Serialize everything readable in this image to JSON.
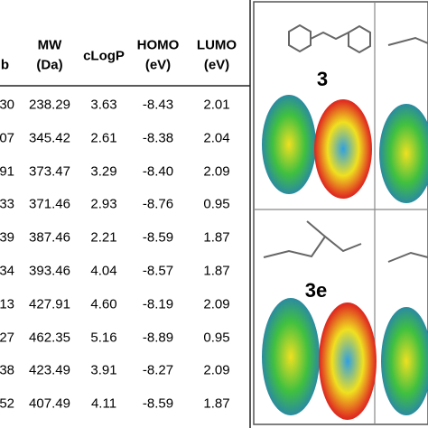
{
  "table": {
    "first_col_header_fragment": "b",
    "columns": [
      {
        "line1": "MW",
        "line2": "(Da)"
      },
      {
        "line1": "cLogP"
      },
      {
        "line1": "HOMO",
        "line2": "(eV)"
      },
      {
        "line1": "LUMO",
        "line2": "(eV)"
      }
    ],
    "rows": [
      [
        "30",
        "238.29",
        "3.63",
        "-8.43",
        "2.01"
      ],
      [
        "07",
        "345.42",
        "2.61",
        "-8.38",
        "2.04"
      ],
      [
        "91",
        "373.47",
        "3.29",
        "-8.40",
        "2.09"
      ],
      [
        "33",
        "371.46",
        "2.93",
        "-8.76",
        "0.95"
      ],
      [
        "39",
        "387.46",
        "2.21",
        "-8.59",
        "1.87"
      ],
      [
        "34",
        "393.46",
        "4.04",
        "-8.57",
        "1.87"
      ],
      [
        "13",
        "427.91",
        "4.60",
        "-8.19",
        "2.09"
      ],
      [
        "27",
        "462.35",
        "5.16",
        "-8.89",
        "0.95"
      ],
      [
        "38",
        "423.49",
        "3.91",
        "-8.27",
        "2.09"
      ],
      [
        "52",
        "407.49",
        "4.11",
        "-8.59",
        "1.87"
      ]
    ]
  },
  "panels": [
    {
      "label": "3"
    },
    {
      "label": "3e"
    }
  ]
}
